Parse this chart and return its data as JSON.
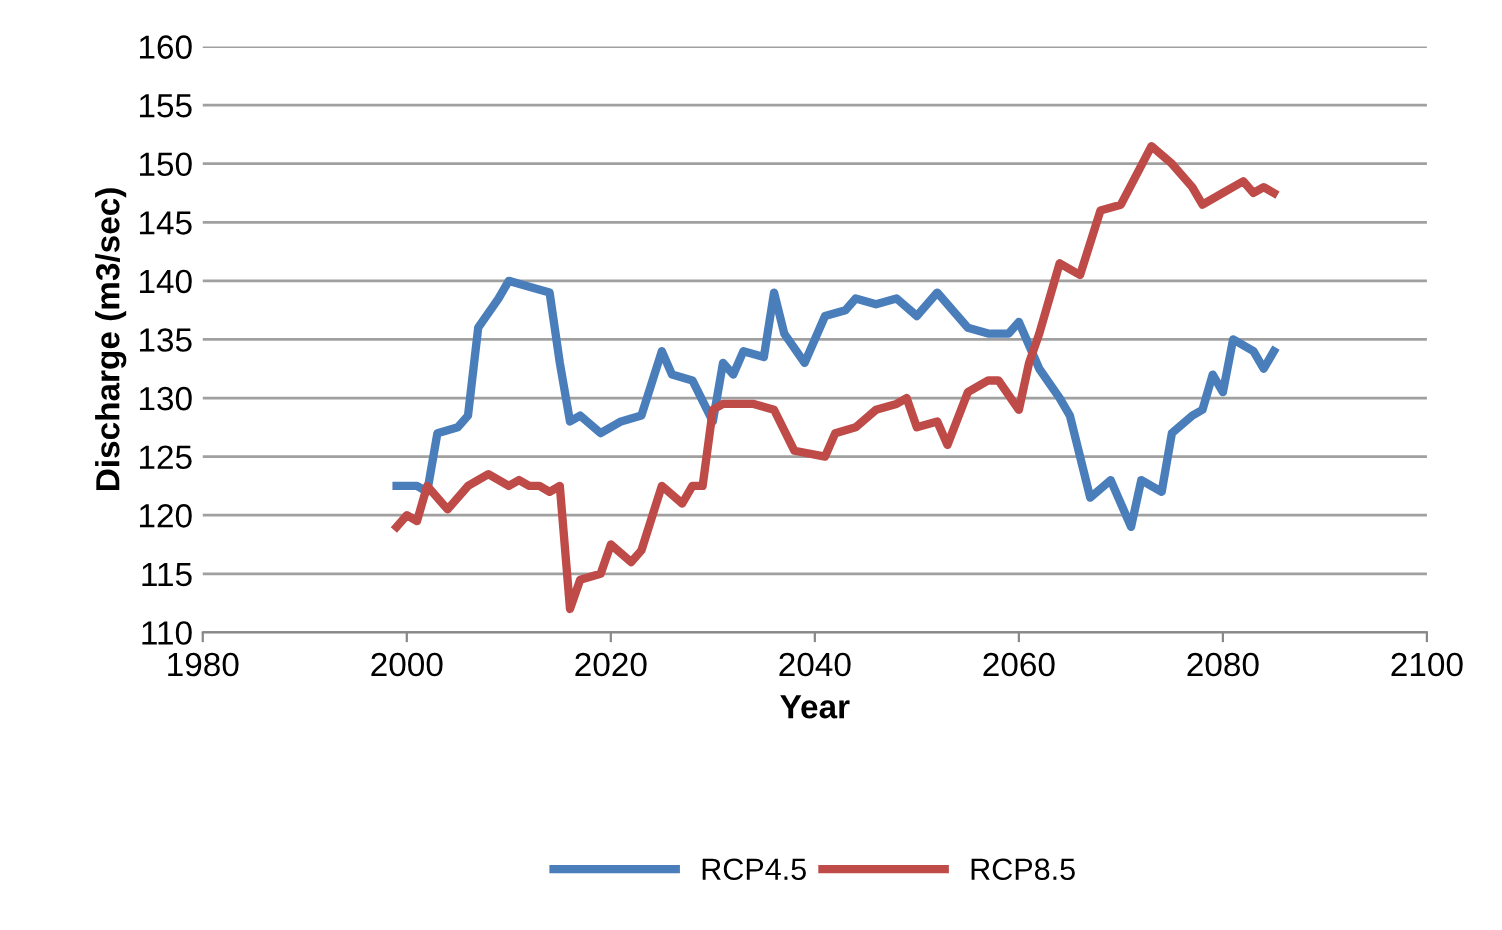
{
  "chart_data": {
    "type": "line",
    "xlabel": "Year",
    "ylabel": "Discharge (m3/sec)",
    "xlim": [
      1980,
      2100
    ],
    "xticks": [
      1980,
      2000,
      2020,
      2040,
      2060,
      2080,
      2100
    ],
    "ylim": [
      110,
      160
    ],
    "yticks": [
      110,
      115,
      120,
      125,
      130,
      135,
      140,
      145,
      150,
      155,
      160
    ],
    "grid": "y",
    "legend": "bottom",
    "marker": "none",
    "line_style": "solid",
    "series": [
      {
        "name": "RCP4.5",
        "color": "#4a7ebb",
        "x": [
          1999,
          2001,
          2002,
          2003,
          2005,
          2006,
          2007,
          2009,
          2010,
          2012,
          2014,
          2015,
          2016,
          2017,
          2019,
          2021,
          2023,
          2025,
          2026,
          2028,
          2030,
          2031,
          2032,
          2033,
          2035,
          2036,
          2037,
          2039,
          2041,
          2043,
          2044,
          2046,
          2048,
          2050,
          2052,
          2055,
          2057,
          2059,
          2060,
          2062,
          2064,
          2065,
          2067,
          2069,
          2071,
          2072,
          2074,
          2075,
          2077,
          2078,
          2079,
          2080,
          2081,
          2083,
          2084,
          2085
        ],
        "values": [
          122.5,
          122.5,
          122,
          127,
          127.5,
          128.5,
          136,
          138.5,
          140,
          139.5,
          139,
          133,
          128,
          128.5,
          127,
          128,
          128.5,
          134,
          132,
          131.5,
          128,
          133,
          132,
          134,
          133.5,
          139,
          135.5,
          133,
          137,
          137.5,
          138.5,
          138,
          138.5,
          137,
          139,
          136,
          135.5,
          135.5,
          136.5,
          132.5,
          130,
          128.5,
          121.5,
          123,
          119,
          123,
          122,
          127,
          128.5,
          129,
          132,
          130.5,
          135,
          134,
          132.5,
          134
        ]
      },
      {
        "name": "RCP8.5",
        "color": "#be4b48",
        "x": [
          1999,
          2000,
          2001,
          2002,
          2004,
          2006,
          2008,
          2010,
          2011,
          2012,
          2013,
          2014,
          2015,
          2016,
          2017,
          2019,
          2020,
          2022,
          2023,
          2025,
          2027,
          2028,
          2029,
          2030,
          2031,
          2034,
          2036,
          2038,
          2041,
          2042,
          2044,
          2046,
          2048,
          2049,
          2050,
          2052,
          2053,
          2055,
          2057,
          2058,
          2060,
          2061,
          2062,
          2064,
          2066,
          2068,
          2070,
          2073,
          2075,
          2077,
          2078,
          2080,
          2082,
          2083,
          2084,
          2085
        ],
        "values": [
          119,
          120,
          119.5,
          122.5,
          120.5,
          122.5,
          123.5,
          122.5,
          123,
          122.5,
          122.5,
          122,
          122.5,
          112,
          114.5,
          115,
          117.5,
          116,
          117,
          122.5,
          121,
          122.5,
          122.5,
          129,
          129.5,
          129.5,
          129,
          125.5,
          125,
          127,
          127.5,
          129,
          129.5,
          130,
          127.5,
          128,
          126,
          130.5,
          131.5,
          131.5,
          129,
          133,
          135.5,
          141.5,
          140.5,
          146,
          146.5,
          151.5,
          150,
          148,
          146.5,
          147.5,
          148.5,
          147.5,
          148,
          147.5
        ]
      }
    ]
  }
}
